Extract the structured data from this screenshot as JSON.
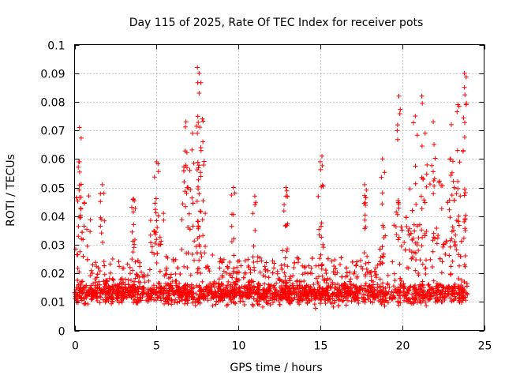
{
  "chart_data": {
    "type": "scatter",
    "title": "Day 115 of 2025, Rate Of TEC Index for receiver pots",
    "xlabel": "GPS time / hours",
    "ylabel": "ROTI / TECUs",
    "xlim": [
      0,
      25
    ],
    "ylim": [
      0,
      0.1
    ],
    "xticks": [
      0,
      5,
      10,
      15,
      20,
      25
    ],
    "xtick_labels": [
      "0",
      "5",
      "10",
      "15",
      "20",
      "25"
    ],
    "yticks": [
      0,
      0.01,
      0.02,
      0.03,
      0.04,
      0.05,
      0.06,
      0.07,
      0.08,
      0.09,
      0.1
    ],
    "ytick_labels": [
      "0",
      "0.01",
      "0.02",
      "0.03",
      "0.04",
      "0.05",
      "0.06",
      "0.07",
      "0.08",
      "0.09",
      "0.1"
    ],
    "grid": true,
    "marker": "+",
    "series_color": "#ff0000",
    "x_range_of_data": [
      0,
      24
    ],
    "baseline_band": [
      0.003,
      0.03
    ],
    "notable_points": [
      {
        "x": 0.3,
        "y": 0.071
      },
      {
        "x": 0.3,
        "y": 0.059
      },
      {
        "x": 1.7,
        "y": 0.051
      },
      {
        "x": 3.6,
        "y": 0.046
      },
      {
        "x": 5.0,
        "y": 0.059
      },
      {
        "x": 6.8,
        "y": 0.073
      },
      {
        "x": 7.2,
        "y": 0.069
      },
      {
        "x": 7.5,
        "y": 0.092
      },
      {
        "x": 7.6,
        "y": 0.09
      },
      {
        "x": 7.6,
        "y": 0.083
      },
      {
        "x": 7.8,
        "y": 0.074
      },
      {
        "x": 9.7,
        "y": 0.05
      },
      {
        "x": 11.0,
        "y": 0.047
      },
      {
        "x": 12.9,
        "y": 0.05
      },
      {
        "x": 12.9,
        "y": 0.047
      },
      {
        "x": 15.1,
        "y": 0.061
      },
      {
        "x": 15.0,
        "y": 0.059
      },
      {
        "x": 17.7,
        "y": 0.051
      },
      {
        "x": 18.8,
        "y": 0.06
      },
      {
        "x": 19.8,
        "y": 0.082
      },
      {
        "x": 20.8,
        "y": 0.075
      },
      {
        "x": 21.2,
        "y": 0.082
      },
      {
        "x": 21.4,
        "y": 0.069
      },
      {
        "x": 21.9,
        "y": 0.073
      },
      {
        "x": 23.0,
        "y": 0.072
      },
      {
        "x": 23.4,
        "y": 0.079
      },
      {
        "x": 23.8,
        "y": 0.085
      },
      {
        "x": 23.8,
        "y": 0.09
      },
      {
        "x": 23.9,
        "y": 0.079
      }
    ]
  }
}
